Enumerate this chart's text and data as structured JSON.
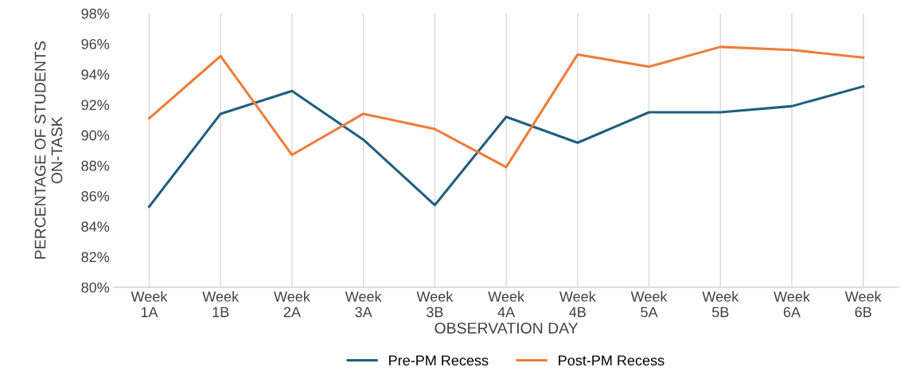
{
  "chart_data": {
    "type": "line",
    "xlabel": "OBSERVATION DAY",
    "ylabel": "PERCENTAGE OF STUDENTS\nON-TASK",
    "categories": [
      "Week\n1A",
      "Week\n1B",
      "Week\n2A",
      "Week\n3A",
      "Week\n3B",
      "Week\n4A",
      "Week\n4B",
      "Week\n5A",
      "Week\n5B",
      "Week\n6A",
      "Week\n6B"
    ],
    "series": [
      {
        "name": "Pre-PM Recess",
        "color": "#1f5f7e",
        "values": [
          85.3,
          91.4,
          92.9,
          89.7,
          85.4,
          91.2,
          89.5,
          91.5,
          91.5,
          91.9,
          93.2
        ]
      },
      {
        "name": "Post-PM Recess",
        "color": "#ee7d3b",
        "values": [
          91.1,
          95.2,
          88.7,
          91.4,
          90.4,
          87.9,
          95.3,
          94.5,
          95.8,
          95.6,
          95.1
        ]
      }
    ],
    "ylim": [
      80,
      98
    ],
    "yticks": [
      {
        "value": 80,
        "label": "80%"
      },
      {
        "value": 82,
        "label": "82%"
      },
      {
        "value": 84,
        "label": "84%"
      },
      {
        "value": 86,
        "label": "86%"
      },
      {
        "value": 88,
        "label": "88%"
      },
      {
        "value": 90,
        "label": "90%"
      },
      {
        "value": 92,
        "label": "92%"
      },
      {
        "value": 94,
        "label": "94%"
      },
      {
        "value": 96,
        "label": "96%"
      },
      {
        "value": 98,
        "label": "98%"
      }
    ],
    "grid": "x",
    "legend": "bottom",
    "marker": "none",
    "line_style": "solid"
  }
}
